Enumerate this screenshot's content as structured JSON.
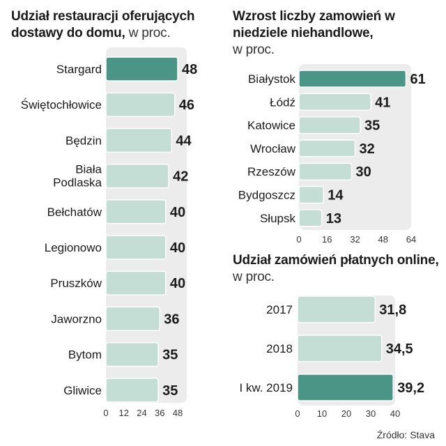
{
  "colors": {
    "bar_light": "#c4ddd5",
    "bar_highlight": "#4a9585",
    "bar_stroke": "#ffffff",
    "track": "#ececec"
  },
  "chart_data": [
    {
      "type": "bar",
      "orientation": "horizontal",
      "title_bold": "Udział restauracji oferujących dostawy do domu,",
      "title_light": "w proc.",
      "categories": [
        "Stargard",
        "Świętochłowice",
        "Będzin",
        "Biała Podlaska",
        "Bełchatów",
        "Legionowo",
        "Pruszków",
        "Jaworzno",
        "Bytom",
        "Gliwice"
      ],
      "values": [
        48,
        46,
        44,
        42,
        40,
        40,
        40,
        36,
        35,
        35
      ],
      "value_labels": [
        "48",
        "46",
        "44",
        "42",
        "40",
        "40",
        "40",
        "36",
        "35",
        "35"
      ],
      "highlight": [
        0
      ],
      "xlim": [
        0,
        48
      ],
      "xticks": [
        0,
        12,
        24,
        36,
        48
      ]
    },
    {
      "type": "bar",
      "orientation": "horizontal",
      "title_bold": "Wzrost liczby zamowień w niedziele niehandlowe,",
      "title_light": "w proc.",
      "categories": [
        "Białystok",
        "Łódź",
        "Katowice",
        "Wrocław",
        "Rzeszów",
        "Bydgoszcz",
        "Słupsk"
      ],
      "values": [
        61,
        41,
        35,
        32,
        30,
        14,
        13
      ],
      "value_labels": [
        "61",
        "41",
        "35",
        "32",
        "30",
        "14",
        "13"
      ],
      "highlight": [
        0
      ],
      "xlim": [
        0,
        64
      ],
      "xticks": [
        0,
        16,
        32,
        48,
        64
      ]
    },
    {
      "type": "bar",
      "orientation": "horizontal",
      "title_bold": "Udział zamówień płatnych online,",
      "title_light": "w proc.",
      "categories": [
        "2017",
        "2018",
        "I kw. 2019"
      ],
      "values": [
        31.8,
        34.5,
        39.2
      ],
      "value_labels": [
        "31,8",
        "34,5",
        "39,2"
      ],
      "highlight": [
        2
      ],
      "xlim": [
        0,
        40
      ],
      "xticks": [
        0,
        10,
        20,
        30,
        40
      ]
    }
  ],
  "source": "Źródło: Stava"
}
